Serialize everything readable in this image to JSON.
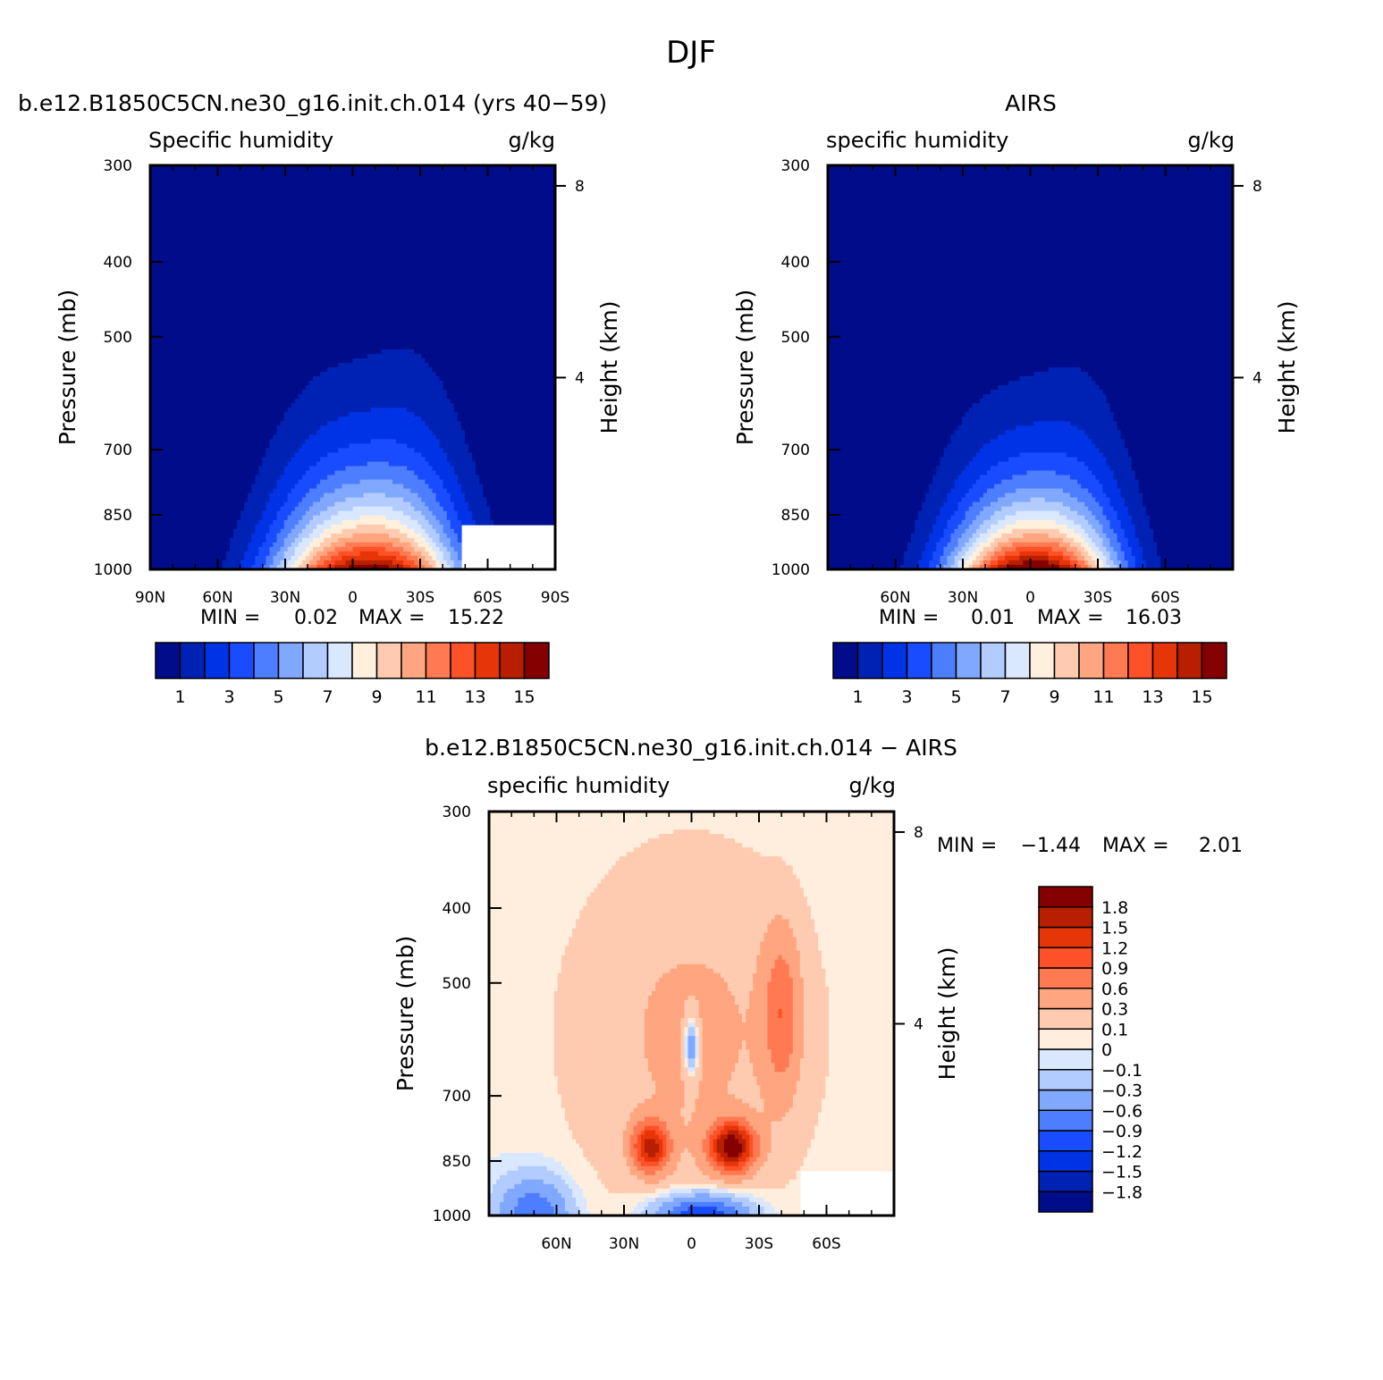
{
  "figure": {
    "title": "DJF",
    "colors": {
      "abs_palette": [
        "#000c8a",
        "#0022b4",
        "#0033e6",
        "#1a4cff",
        "#4d7eff",
        "#80a8ff",
        "#b3ccff",
        "#d9e8ff",
        "#fff0dd",
        "#ffcbb0",
        "#ffa57f",
        "#ff7a52",
        "#ff5127",
        "#e63509",
        "#b81f00",
        "#850000"
      ],
      "diff_palette": [
        "#000c8a",
        "#0022b4",
        "#0033e6",
        "#1a4cff",
        "#4d7eff",
        "#80a8ff",
        "#b3ccff",
        "#d9e8ff",
        "#ffeedd",
        "#ffcbb0",
        "#ffa57f",
        "#ff7a52",
        "#ff5127",
        "#e63509",
        "#b81f00",
        "#850000"
      ]
    }
  },
  "chart_data": [
    {
      "type": "heatmap",
      "id": "model",
      "title": "b.e12.B1850C5CN.ne30_g16.init.ch.014 (yrs 40−59)",
      "subtitle_left": "Specific humidity",
      "subtitle_right": "g/kg",
      "ylabel": "Pressure (mb)",
      "ylabel_right": "Height (km)",
      "x_ticks": [
        "90N",
        "60N",
        "30N",
        "0",
        "30S",
        "60S",
        "90S"
      ],
      "x_tick_values": [
        90,
        60,
        30,
        0,
        -30,
        -60,
        -90
      ],
      "xlim": [
        90,
        -90
      ],
      "y_ticks": [
        300,
        400,
        500,
        700,
        850,
        1000
      ],
      "ylim": [
        300,
        1000
      ],
      "y_scale": "log",
      "height_ticks": [
        "8",
        "4"
      ],
      "height_tick_values": [
        8,
        4
      ],
      "stats": {
        "min_label": "MIN =",
        "min": "0.02",
        "max_label": "MAX =",
        "max": "15.22"
      },
      "colorbar_labels": [
        "1",
        "3",
        "5",
        "7",
        "9",
        "11",
        "13",
        "15"
      ],
      "field": {
        "peak": 15.22,
        "center_lat": -5,
        "width_deg": 38,
        "scale_height_norm": 0.18,
        "missing_below_lat": -48
      }
    },
    {
      "type": "heatmap",
      "id": "obs",
      "title": "AIRS",
      "subtitle_left": "specific humidity",
      "subtitle_right": "g/kg",
      "ylabel": "Pressure (mb)",
      "ylabel_right": "Height (km)",
      "x_ticks": [
        "60N",
        "30N",
        "0",
        "30S",
        "60S"
      ],
      "x_tick_values": [
        60,
        30,
        0,
        -30,
        -60
      ],
      "xlim": [
        90,
        -90
      ],
      "y_ticks": [
        300,
        400,
        500,
        700,
        850,
        1000
      ],
      "ylim": [
        300,
        1000
      ],
      "y_scale": "log",
      "height_ticks": [
        "8",
        "4"
      ],
      "height_tick_values": [
        8,
        4
      ],
      "stats": {
        "min_label": "MIN =",
        "min": "0.01",
        "max_label": "MAX =",
        "max": "16.03"
      },
      "colorbar_labels": [
        "1",
        "3",
        "5",
        "7",
        "9",
        "11",
        "13",
        "15"
      ],
      "field": {
        "peak": 16.03,
        "center_lat": 0,
        "width_deg": 34,
        "scale_height_norm": 0.16,
        "missing_below_lat": null
      }
    },
    {
      "type": "heatmap",
      "id": "diff",
      "title": "b.e12.B1850C5CN.ne30_g16.init.ch.014 − AIRS",
      "subtitle_left": "specific humidity",
      "subtitle_right": "g/kg",
      "ylabel": "Pressure (mb)",
      "ylabel_right": "Height (km)",
      "x_ticks": [
        "60N",
        "30N",
        "0",
        "30S",
        "60S"
      ],
      "x_tick_values": [
        60,
        30,
        0,
        -30,
        -60
      ],
      "xlim": [
        90,
        -90
      ],
      "y_ticks": [
        300,
        400,
        500,
        700,
        850,
        1000
      ],
      "ylim": [
        300,
        1000
      ],
      "y_scale": "log",
      "height_ticks": [
        "8",
        "4"
      ],
      "height_tick_values": [
        8,
        4
      ],
      "stats": {
        "min_label": "MIN =",
        "min": "−1.44",
        "max_label": "MAX =",
        "max": "2.01"
      },
      "colorbar_labels": [
        "1.8",
        "1.5",
        "1.2",
        "0.9",
        "0.6",
        "0.3",
        "0.1",
        "0",
        "−0.1",
        "−0.3",
        "−0.6",
        "−0.9",
        "−1.2",
        "−1.5",
        "−1.8"
      ],
      "levels": [
        -1.8,
        -1.5,
        -1.2,
        -0.9,
        -0.6,
        -0.3,
        -0.1,
        0,
        0.1,
        0.3,
        0.6,
        0.9,
        1.2,
        1.5,
        1.8
      ]
    }
  ]
}
